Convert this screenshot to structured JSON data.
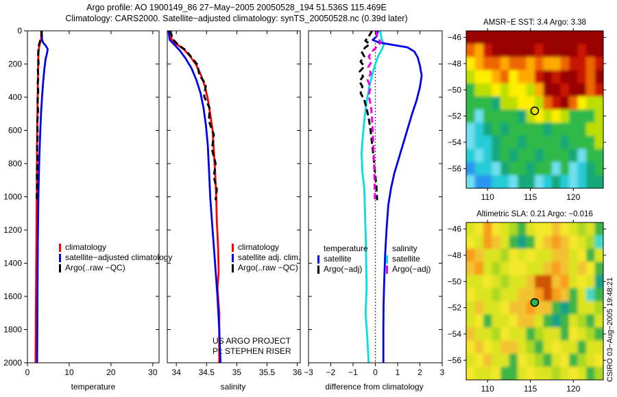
{
  "title": {
    "line1": "Argo profile: AO 1900149_86 27−May−2005 20050528_194 51.536S 115.469E",
    "line2": "Climatology: CARS2000. Satellite−adjusted climatology: synTS_20050528.nc (0.39d later)"
  },
  "credit": "CSIRO 03−Aug−2005 19:48:21",
  "annotation": {
    "line1": "US ARGO PROJECT",
    "line2": "PI: STEPHEN RISER"
  },
  "chart_data": [
    {
      "id": "temperature-profile",
      "type": "line",
      "xlabel": "temperature",
      "xlim": [
        0,
        31.5
      ],
      "xticks": [
        0,
        10,
        20,
        30
      ],
      "depth_lim": [
        0,
        2000
      ],
      "depth_ticks": [
        0,
        200,
        400,
        600,
        800,
        1000,
        1200,
        1400,
        1600,
        1800,
        2000
      ],
      "series": [
        {
          "name": "climatology",
          "color": "#ff0000",
          "dash": "solid",
          "points": [
            [
              0,
              3.3
            ],
            [
              45,
              3.3
            ],
            [
              70,
              3.05
            ],
            [
              95,
              2.8
            ],
            [
              130,
              2.65
            ],
            [
              180,
              2.58
            ],
            [
              250,
              2.52
            ],
            [
              350,
              2.47
            ],
            [
              450,
              2.42
            ],
            [
              560,
              2.37
            ],
            [
              680,
              2.32
            ],
            [
              800,
              2.28
            ],
            [
              950,
              2.24
            ],
            [
              1100,
              2.2
            ],
            [
              1300,
              2.14
            ],
            [
              1500,
              2.08
            ],
            [
              1700,
              2.02
            ],
            [
              1850,
              1.98
            ],
            [
              2000,
              1.95
            ]
          ]
        },
        {
          "name": "satellite−adjusted climatology",
          "color": "#0000ee",
          "dash": "solid",
          "points": [
            [
              0,
              3.45
            ],
            [
              50,
              3.5
            ],
            [
              70,
              3.7
            ],
            [
              90,
              4.4
            ],
            [
              110,
              4.85
            ],
            [
              135,
              4.7
            ],
            [
              170,
              4.35
            ],
            [
              230,
              4.05
            ],
            [
              310,
              3.75
            ],
            [
              400,
              3.5
            ],
            [
              500,
              3.25
            ],
            [
              620,
              3.05
            ],
            [
              760,
              2.85
            ],
            [
              900,
              2.7
            ],
            [
              1050,
              2.6
            ],
            [
              1250,
              2.5
            ],
            [
              1450,
              2.44
            ],
            [
              1650,
              2.4
            ],
            [
              1820,
              2.36
            ],
            [
              2000,
              2.32
            ]
          ]
        },
        {
          "name": "Argo(..raw −QC)",
          "color": "#000000",
          "dash": "dashed",
          "points": [
            [
              0,
              3.38
            ],
            [
              40,
              3.34
            ],
            [
              60,
              3.05
            ],
            [
              85,
              2.75
            ],
            [
              115,
              2.62
            ],
            [
              155,
              2.55
            ],
            [
              195,
              2.66
            ],
            [
              235,
              2.5
            ],
            [
              275,
              2.62
            ],
            [
              315,
              2.47
            ],
            [
              365,
              2.57
            ],
            [
              425,
              2.42
            ],
            [
              485,
              2.52
            ],
            [
              555,
              2.37
            ],
            [
              625,
              2.45
            ],
            [
              700,
              2.32
            ],
            [
              780,
              2.38
            ],
            [
              860,
              2.27
            ],
            [
              940,
              2.32
            ],
            [
              1020,
              2.22
            ]
          ]
        }
      ]
    },
    {
      "id": "salinity-profile",
      "type": "line",
      "xlabel": "salinity",
      "xlim": [
        33.85,
        36.05
      ],
      "xticks": [
        34,
        34.5,
        35,
        35.5,
        36
      ],
      "depth_lim": [
        0,
        2000
      ],
      "depth_ticks": [
        0,
        200,
        400,
        600,
        800,
        1000,
        1200,
        1400,
        1600,
        1800,
        2000
      ],
      "series": [
        {
          "name": "climatology",
          "color": "#ff0000",
          "dash": "solid",
          "points": [
            [
              0,
              33.9
            ],
            [
              50,
              33.92
            ],
            [
              80,
              34.0
            ],
            [
              110,
              34.12
            ],
            [
              150,
              34.22
            ],
            [
              200,
              34.32
            ],
            [
              260,
              34.4
            ],
            [
              330,
              34.47
            ],
            [
              410,
              34.52
            ],
            [
              500,
              34.56
            ],
            [
              600,
              34.6
            ],
            [
              720,
              34.62
            ],
            [
              850,
              34.64
            ],
            [
              1000,
              34.66
            ],
            [
              1150,
              34.67
            ],
            [
              1300,
              34.69
            ],
            [
              1450,
              34.7
            ],
            [
              1550,
              34.68
            ],
            [
              1700,
              34.71
            ],
            [
              2000,
              34.71
            ]
          ]
        },
        {
          "name": "satellite adj. clim.",
          "color": "#0000ee",
          "dash": "solid",
          "points": [
            [
              0,
              33.87
            ],
            [
              55,
              33.89
            ],
            [
              85,
              33.97
            ],
            [
              120,
              34.06
            ],
            [
              165,
              34.15
            ],
            [
              225,
              34.25
            ],
            [
              295,
              34.33
            ],
            [
              375,
              34.4
            ],
            [
              465,
              34.45
            ],
            [
              570,
              34.49
            ],
            [
              690,
              34.52
            ],
            [
              830,
              34.54
            ],
            [
              1000,
              34.56
            ],
            [
              1200,
              34.6
            ],
            [
              1400,
              34.64
            ],
            [
              1600,
              34.68
            ],
            [
              1800,
              34.71
            ],
            [
              2000,
              34.73
            ]
          ]
        },
        {
          "name": "Argo(..raw −QC)",
          "color": "#000000",
          "dash": "dashed",
          "points": [
            [
              0,
              33.9
            ],
            [
              50,
              33.94
            ],
            [
              85,
              34.03
            ],
            [
              115,
              34.15
            ],
            [
              155,
              34.24
            ],
            [
              205,
              34.35
            ],
            [
              265,
              34.38
            ],
            [
              325,
              34.49
            ],
            [
              395,
              34.46
            ],
            [
              465,
              34.55
            ],
            [
              545,
              34.54
            ],
            [
              625,
              34.62
            ],
            [
              715,
              34.59
            ],
            [
              800,
              34.65
            ],
            [
              880,
              34.62
            ],
            [
              955,
              34.67
            ],
            [
              1020,
              34.65
            ]
          ]
        }
      ]
    },
    {
      "id": "difference-profile",
      "type": "line",
      "xlabel": "difference from climatology",
      "xlim": [
        -3,
        3
      ],
      "xticks": [
        -3,
        -2,
        -1,
        0,
        1,
        2,
        3
      ],
      "zero_line": true,
      "depth_lim": [
        0,
        2000
      ],
      "depth_ticks": [
        0,
        200,
        400,
        600,
        800,
        1000,
        1200,
        1400,
        1600,
        1800,
        2000
      ],
      "series": [
        {
          "name": "salinity satellite",
          "color": "#00e0e0",
          "dash": "solid",
          "points": [
            [
              0,
              0.22
            ],
            [
              50,
              0.28
            ],
            [
              80,
              0.38
            ],
            [
              110,
              0.3
            ],
            [
              150,
              0.14
            ],
            [
              200,
              0.0
            ],
            [
              260,
              -0.13
            ],
            [
              330,
              -0.26
            ],
            [
              420,
              -0.38
            ],
            [
              520,
              -0.48
            ],
            [
              630,
              -0.56
            ],
            [
              740,
              -0.62
            ],
            [
              850,
              -0.58
            ],
            [
              950,
              -0.5
            ],
            [
              1100,
              -0.46
            ],
            [
              1250,
              -0.43
            ],
            [
              1400,
              -0.41
            ],
            [
              1550,
              -0.39
            ],
            [
              1700,
              -0.44
            ],
            [
              1830,
              -0.37
            ],
            [
              2000,
              -0.3
            ]
          ]
        },
        {
          "name": "temperature satellite",
          "color": "#0000ee",
          "dash": "solid",
          "points": [
            [
              0,
              0.12
            ],
            [
              35,
              0.05
            ],
            [
              55,
              -0.12
            ],
            [
              70,
              0.15
            ],
            [
              85,
              0.8
            ],
            [
              100,
              1.45
            ],
            [
              125,
              1.75
            ],
            [
              160,
              1.9
            ],
            [
              210,
              2.0
            ],
            [
              270,
              2.08
            ],
            [
              340,
              2.0
            ],
            [
              420,
              1.85
            ],
            [
              500,
              1.65
            ],
            [
              590,
              1.45
            ],
            [
              680,
              1.25
            ],
            [
              770,
              1.05
            ],
            [
              860,
              0.85
            ],
            [
              950,
              0.7
            ],
            [
              1050,
              0.58
            ],
            [
              1200,
              0.5
            ],
            [
              1350,
              0.44
            ],
            [
              1500,
              0.4
            ],
            [
              1650,
              0.37
            ],
            [
              1800,
              0.36
            ],
            [
              2000,
              0.36
            ]
          ]
        },
        {
          "name": "temperature Argo(−adj)",
          "color": "#000000",
          "dash": "dashed",
          "points": [
            [
              0,
              -0.15
            ],
            [
              35,
              -0.3
            ],
            [
              60,
              -0.45
            ],
            [
              80,
              -0.25
            ],
            [
              100,
              -0.45
            ],
            [
              125,
              -0.62
            ],
            [
              155,
              -0.5
            ],
            [
              185,
              -0.66
            ],
            [
              215,
              -0.5
            ],
            [
              245,
              -0.7
            ],
            [
              275,
              -0.55
            ],
            [
              305,
              -0.72
            ],
            [
              335,
              -0.58
            ],
            [
              375,
              -0.66
            ],
            [
              415,
              -0.5
            ],
            [
              465,
              -0.4
            ],
            [
              525,
              -0.3
            ],
            [
              595,
              -0.22
            ],
            [
              675,
              -0.15
            ],
            [
              760,
              -0.08
            ],
            [
              850,
              -0.02
            ],
            [
              940,
              0.05
            ],
            [
              1020,
              0.08
            ]
          ]
        },
        {
          "name": "salinity Argo(−adj)",
          "color": "#ee00ee",
          "dash": "dashed",
          "points": [
            [
              0,
              0.0
            ],
            [
              40,
              0.1
            ],
            [
              70,
              0.25
            ],
            [
              95,
              0.08
            ],
            [
              125,
              -0.15
            ],
            [
              155,
              -0.3
            ],
            [
              185,
              -0.17
            ],
            [
              220,
              -0.32
            ],
            [
              255,
              -0.2
            ],
            [
              295,
              -0.35
            ],
            [
              340,
              -0.22
            ],
            [
              390,
              -0.3
            ],
            [
              450,
              -0.2
            ],
            [
              520,
              -0.15
            ],
            [
              600,
              -0.12
            ],
            [
              690,
              -0.09
            ],
            [
              780,
              -0.06
            ],
            [
              880,
              -0.04
            ],
            [
              1020,
              -0.02
            ]
          ]
        }
      ],
      "legend_groups": [
        {
          "header": "temperature",
          "items": [
            {
              "label": "satellite",
              "color": "#0000ee",
              "dash": "solid"
            },
            {
              "label": "Argo(−adj)",
              "color": "#000000",
              "dash": "dashed"
            }
          ]
        },
        {
          "header": "salinity",
          "items": [
            {
              "label": "satellite",
              "color": "#00e0e0",
              "dash": "solid"
            },
            {
              "label": "Argo(−adj)",
              "color": "#ee00ee",
              "dash": "dashed"
            }
          ]
        }
      ]
    },
    {
      "id": "sst-map",
      "type": "heatmap",
      "title": "AMSR−E SST: 3.4 Argo: 3.38",
      "xlim": [
        107.5,
        123.5
      ],
      "ylim": [
        -45.5,
        -57.5
      ],
      "xticks": [
        110,
        115,
        120
      ],
      "yticks": [
        -46,
        -48,
        -50,
        -52,
        -54,
        -56
      ],
      "marker": {
        "lon": 115.5,
        "lat": -51.6,
        "fill": "none"
      },
      "palette": {
        "R": "#990000",
        "r": "#c81400",
        "O": "#ee6600",
        "o": "#ffaa00",
        "Y": "#ffee00",
        "y": "#bede00",
        "G": "#2fb948",
        "g": "#13a878",
        "C": "#28cbd8",
        "c": "#6fdfee",
        "B": "#2b96f0"
      },
      "grid": [
        "RRRRRRRRRRRRRRRR",
        "OorRRRRRrRRRRrRR",
        "YoOOoOOoOooOrrOr",
        "yYYoOYoorRrRRrOR",
        "GyyYyYYyoRRrRROr",
        "GGGgyyYYyOrROYyy",
        "GcGGGGgyYyYyGGGy",
        "cCgGgGGGGgGGGGyy",
        "cCCgGGgGGGGgGGGy",
        "CcCgGgGGgGGGgcGG",
        "BCCcgGGgGGcGcCgG",
        "cBBCCcggcCgCcCgg"
      ]
    },
    {
      "id": "sla-map",
      "type": "heatmap",
      "title": "Altimetric SLA: 0.21 Argo: −0.016",
      "xlim": [
        107.5,
        123.5
      ],
      "ylim": [
        -45.5,
        -57.5
      ],
      "xticks": [
        110,
        115,
        120
      ],
      "yticks": [
        -46,
        -48,
        -50,
        -52,
        -54,
        -56
      ],
      "marker": {
        "lon": 115.5,
        "lat": -51.6,
        "fill": "#2fb948"
      },
      "palette": {
        "Y": "#f4e82c",
        "y": "#dce421",
        "o": "#f3c233",
        "O": "#f89d1f",
        "D": "#cf5200",
        "L": "#abd822",
        "g": "#3cb54a",
        "T": "#14a289",
        "c": "#45d8c6"
      },
      "grid": [
        "yYOYyLgyYYoYyLyg",
        "YyOoygTgYoOoYyLc",
        "OoyyLYyYyyooyYgy",
        "oOyLyYYyyoOoyoYg",
        "yyYyLyyoDDoOyYyT",
        "YyyLyyooODOogycg",
        "yoyyYooOoogTgyyL",
        "yYgyyYooygTgyLgy",
        "oyyLYyygLyygYyLg",
        "YoYyooyLgyYyygyy",
        "yYoyygYyLgyYgLyY",
        "YyyYggyYyyLyYygL"
      ]
    }
  ]
}
